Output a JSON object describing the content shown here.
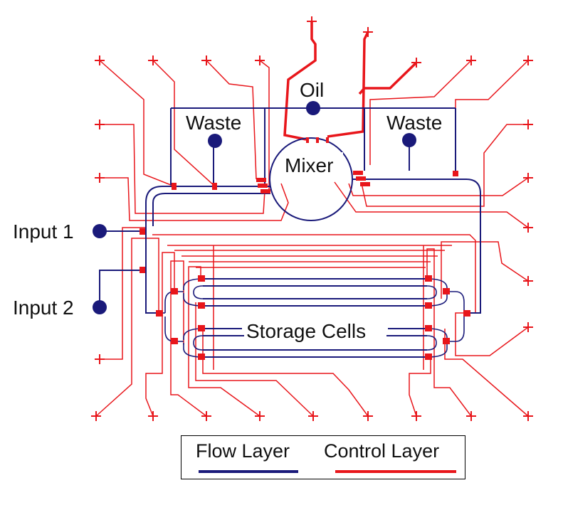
{
  "labels": {
    "oil": "Oil",
    "waste_left": "Waste",
    "waste_right": "Waste",
    "mixer": "Mixer",
    "input1": "Input 1",
    "input2": "Input 2",
    "storage": "Storage Cells"
  },
  "legend": {
    "flow": {
      "label": "Flow Layer",
      "color": "#1a1a7a"
    },
    "control": {
      "label": "Control Layer",
      "color": "#e8161b"
    }
  },
  "colors": {
    "flow": "#1a1a7a",
    "control": "#e8161b"
  }
}
